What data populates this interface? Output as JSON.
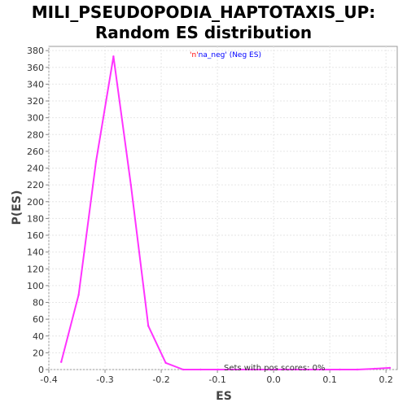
{
  "chart_data": {
    "type": "line",
    "title_line1": "MILI_PSEUDOPODIA_HAPTOTAXIS_UP:",
    "title_line2": "Random ES distribution",
    "xlabel": "ES",
    "ylabel": "P(ES)",
    "xlim": [
      -0.4,
      0.22
    ],
    "ylim": [
      0,
      385
    ],
    "x_ticks": [
      -0.4,
      -0.3,
      -0.2,
      -0.1,
      0.0,
      0.1,
      0.2
    ],
    "x_tick_labels": [
      "-0.4",
      "-0.3",
      "-0.2",
      "-0.1",
      "0.0",
      "0.1",
      "0.2"
    ],
    "y_ticks": [
      0,
      20,
      40,
      60,
      80,
      100,
      120,
      140,
      160,
      180,
      200,
      220,
      240,
      260,
      280,
      300,
      320,
      340,
      360,
      380
    ],
    "y_tick_labels": [
      "0",
      "20",
      "40",
      "60",
      "80",
      "100",
      "120",
      "140",
      "160",
      "180",
      "200",
      "220",
      "240",
      "260",
      "280",
      "300",
      "320",
      "340",
      "360",
      "380"
    ],
    "grid": true,
    "legend": {
      "prefix": "'n'",
      "name": "na_neg'",
      "suffix": " (Neg ES)",
      "prefix_color": "#ff0000",
      "text_color": "#0000ff",
      "placement": "top-center"
    },
    "annotation": "Sets with pos scores: 0%",
    "series": [
      {
        "color": "#ff33ff",
        "x": [
          -0.378,
          -0.347,
          -0.316,
          -0.285,
          -0.254,
          -0.223,
          -0.192,
          -0.161,
          -0.13,
          -0.099,
          -0.068,
          -0.037,
          -0.006,
          0.025,
          0.056,
          0.087,
          0.118,
          0.149,
          0.18,
          0.207
        ],
        "y": [
          9,
          89,
          248,
          373,
          220,
          52,
          8,
          0,
          0,
          0,
          0,
          0,
          0,
          0,
          0,
          0,
          0,
          0,
          1,
          2
        ]
      }
    ]
  }
}
